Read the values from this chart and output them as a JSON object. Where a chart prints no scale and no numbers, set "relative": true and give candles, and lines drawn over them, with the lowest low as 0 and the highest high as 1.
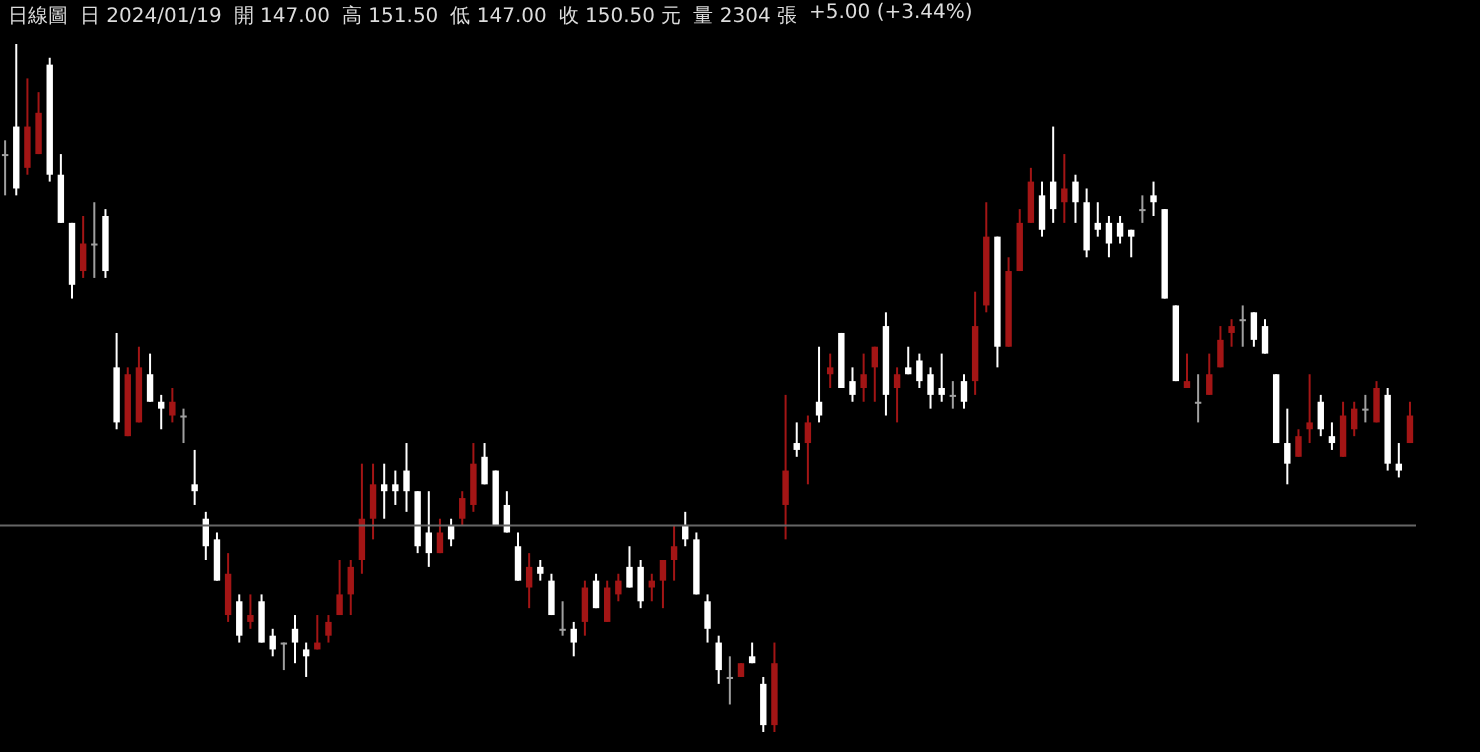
{
  "chart_data": {
    "type": "candlestick",
    "relative": true,
    "annotations": [
      "日線圖",
      "日 2024/01/19",
      "開 147.00",
      "高 151.50",
      "低 147.00",
      "收 150.50 元",
      "量 2304 張",
      "+5.00 (+3.44%)"
    ],
    "categories": [
      null,
      null,
      null,
      null,
      null,
      null,
      null,
      null,
      null,
      null,
      null,
      null,
      null,
      null,
      null,
      null,
      null,
      null,
      null,
      null,
      null,
      null,
      null,
      null,
      null,
      null,
      null,
      null,
      null,
      null,
      null,
      null,
      null,
      null,
      null,
      null,
      null,
      null,
      null,
      null,
      null,
      null,
      null,
      null,
      null,
      null,
      null,
      null,
      null,
      null,
      null,
      null,
      null,
      null,
      null,
      null,
      null,
      null,
      null,
      null,
      null,
      null,
      null,
      null,
      null,
      null,
      null,
      null,
      null,
      null,
      null,
      null,
      null,
      null,
      null,
      null,
      null,
      null,
      null,
      null,
      null,
      null,
      null,
      null,
      null,
      null,
      null,
      null,
      null,
      null,
      null,
      null,
      null,
      null,
      null,
      null,
      null,
      null,
      null,
      null,
      null,
      null,
      null,
      null,
      null,
      null,
      null,
      null,
      null,
      null,
      null,
      null,
      null,
      null,
      null,
      null,
      null,
      null,
      null,
      null,
      null,
      null,
      null,
      null,
      null,
      null,
      null
    ],
    "ohlc": [
      [
        0.84,
        0.86,
        0.78,
        0.84
      ],
      [
        0.88,
        1.0,
        0.78,
        0.79
      ],
      [
        0.82,
        0.95,
        0.81,
        0.88
      ],
      [
        0.84,
        0.93,
        0.84,
        0.9
      ],
      [
        0.97,
        0.98,
        0.8,
        0.81
      ],
      [
        0.81,
        0.84,
        0.74,
        0.74
      ],
      [
        0.74,
        0.74,
        0.63,
        0.65
      ],
      [
        0.67,
        0.75,
        0.66,
        0.71
      ],
      [
        0.71,
        0.77,
        0.66,
        0.71
      ],
      [
        0.75,
        0.76,
        0.66,
        0.67
      ],
      [
        0.53,
        0.58,
        0.44,
        0.45
      ],
      [
        0.43,
        0.53,
        0.43,
        0.52
      ],
      [
        0.45,
        0.56,
        0.45,
        0.53
      ],
      [
        0.52,
        0.55,
        0.48,
        0.48
      ],
      [
        0.48,
        0.49,
        0.44,
        0.47
      ],
      [
        0.46,
        0.5,
        0.45,
        0.48
      ],
      [
        0.46,
        0.47,
        0.42,
        0.46
      ],
      [
        0.36,
        0.41,
        0.33,
        0.35
      ],
      [
        0.31,
        0.32,
        0.25,
        0.27
      ],
      [
        0.28,
        0.29,
        0.22,
        0.22
      ],
      [
        0.17,
        0.26,
        0.16,
        0.23
      ],
      [
        0.19,
        0.2,
        0.13,
        0.14
      ],
      [
        0.16,
        0.2,
        0.15,
        0.17
      ],
      [
        0.19,
        0.2,
        0.13,
        0.13
      ],
      [
        0.14,
        0.15,
        0.11,
        0.12
      ],
      [
        0.13,
        0.13,
        0.09,
        0.13
      ],
      [
        0.15,
        0.17,
        0.1,
        0.13
      ],
      [
        0.12,
        0.13,
        0.08,
        0.11
      ],
      [
        0.12,
        0.17,
        0.12,
        0.13
      ],
      [
        0.14,
        0.17,
        0.13,
        0.16
      ],
      [
        0.17,
        0.25,
        0.17,
        0.2
      ],
      [
        0.2,
        0.25,
        0.17,
        0.24
      ],
      [
        0.25,
        0.39,
        0.23,
        0.31
      ],
      [
        0.31,
        0.39,
        0.28,
        0.36
      ],
      [
        0.36,
        0.39,
        0.31,
        0.35
      ],
      [
        0.36,
        0.38,
        0.33,
        0.35
      ],
      [
        0.38,
        0.42,
        0.32,
        0.35
      ],
      [
        0.35,
        0.35,
        0.26,
        0.27
      ],
      [
        0.29,
        0.35,
        0.24,
        0.26
      ],
      [
        0.26,
        0.31,
        0.26,
        0.29
      ],
      [
        0.3,
        0.31,
        0.27,
        0.28
      ],
      [
        0.31,
        0.35,
        0.3,
        0.34
      ],
      [
        0.33,
        0.42,
        0.32,
        0.39
      ],
      [
        0.4,
        0.42,
        0.36,
        0.36
      ],
      [
        0.38,
        0.38,
        0.3,
        0.3
      ],
      [
        0.33,
        0.35,
        0.29,
        0.29
      ],
      [
        0.27,
        0.29,
        0.22,
        0.22
      ],
      [
        0.21,
        0.26,
        0.18,
        0.24
      ],
      [
        0.24,
        0.25,
        0.22,
        0.23
      ],
      [
        0.22,
        0.23,
        0.17,
        0.17
      ],
      [
        0.15,
        0.19,
        0.14,
        0.15
      ],
      [
        0.15,
        0.16,
        0.11,
        0.13
      ],
      [
        0.16,
        0.22,
        0.14,
        0.21
      ],
      [
        0.22,
        0.23,
        0.18,
        0.18
      ],
      [
        0.16,
        0.22,
        0.16,
        0.21
      ],
      [
        0.2,
        0.23,
        0.19,
        0.22
      ],
      [
        0.24,
        0.27,
        0.21,
        0.21
      ],
      [
        0.24,
        0.25,
        0.18,
        0.19
      ],
      [
        0.21,
        0.23,
        0.19,
        0.22
      ],
      [
        0.22,
        0.25,
        0.18,
        0.25
      ],
      [
        0.25,
        0.3,
        0.22,
        0.27
      ],
      [
        0.3,
        0.32,
        0.27,
        0.28
      ],
      [
        0.28,
        0.29,
        0.2,
        0.2
      ],
      [
        0.19,
        0.2,
        0.13,
        0.15
      ],
      [
        0.13,
        0.14,
        0.07,
        0.09
      ],
      [
        0.08,
        0.11,
        0.04,
        0.08
      ],
      [
        0.08,
        0.1,
        0.08,
        0.1
      ],
      [
        0.11,
        0.13,
        0.1,
        0.1
      ],
      [
        0.07,
        0.08,
        0.0,
        0.01
      ],
      [
        0.01,
        0.13,
        0.0,
        0.1
      ],
      [
        0.33,
        0.49,
        0.28,
        0.38
      ],
      [
        0.42,
        0.45,
        0.4,
        0.41
      ],
      [
        0.42,
        0.46,
        0.36,
        0.45
      ],
      [
        0.48,
        0.56,
        0.45,
        0.46
      ],
      [
        0.52,
        0.55,
        0.5,
        0.53
      ],
      [
        0.58,
        0.58,
        0.5,
        0.5
      ],
      [
        0.51,
        0.53,
        0.48,
        0.49
      ],
      [
        0.5,
        0.55,
        0.48,
        0.52
      ],
      [
        0.53,
        0.56,
        0.48,
        0.56
      ],
      [
        0.59,
        0.61,
        0.46,
        0.49
      ],
      [
        0.5,
        0.53,
        0.45,
        0.52
      ],
      [
        0.53,
        0.56,
        0.52,
        0.52
      ],
      [
        0.54,
        0.55,
        0.5,
        0.51
      ],
      [
        0.52,
        0.53,
        0.47,
        0.49
      ],
      [
        0.5,
        0.55,
        0.48,
        0.49
      ],
      [
        0.49,
        0.51,
        0.47,
        0.49
      ],
      [
        0.51,
        0.52,
        0.47,
        0.48
      ],
      [
        0.51,
        0.64,
        0.49,
        0.59
      ],
      [
        0.62,
        0.77,
        0.61,
        0.72
      ],
      [
        0.72,
        0.72,
        0.53,
        0.56
      ],
      [
        0.56,
        0.69,
        0.56,
        0.67
      ],
      [
        0.67,
        0.76,
        0.67,
        0.74
      ],
      [
        0.74,
        0.82,
        0.74,
        0.8
      ],
      [
        0.78,
        0.8,
        0.72,
        0.73
      ],
      [
        0.8,
        0.88,
        0.74,
        0.76
      ],
      [
        0.77,
        0.84,
        0.74,
        0.79
      ],
      [
        0.8,
        0.81,
        0.74,
        0.77
      ],
      [
        0.77,
        0.79,
        0.69,
        0.7
      ],
      [
        0.74,
        0.77,
        0.72,
        0.73
      ],
      [
        0.74,
        0.75,
        0.69,
        0.71
      ],
      [
        0.74,
        0.75,
        0.71,
        0.72
      ],
      [
        0.73,
        0.73,
        0.69,
        0.72
      ],
      [
        0.76,
        0.78,
        0.74,
        0.76
      ],
      [
        0.78,
        0.8,
        0.75,
        0.77
      ],
      [
        0.76,
        0.76,
        0.63,
        0.63
      ],
      [
        0.62,
        0.62,
        0.51,
        0.51
      ],
      [
        0.5,
        0.55,
        0.5,
        0.51
      ],
      [
        0.48,
        0.52,
        0.45,
        0.48
      ],
      [
        0.49,
        0.55,
        0.49,
        0.52
      ],
      [
        0.53,
        0.59,
        0.53,
        0.57
      ],
      [
        0.58,
        0.6,
        0.56,
        0.59
      ],
      [
        0.6,
        0.62,
        0.56,
        0.6
      ],
      [
        0.61,
        0.61,
        0.56,
        0.57
      ],
      [
        0.59,
        0.6,
        0.55,
        0.55
      ],
      [
        0.52,
        0.52,
        0.42,
        0.42
      ],
      [
        0.42,
        0.47,
        0.36,
        0.39
      ],
      [
        0.4,
        0.44,
        0.4,
        0.43
      ],
      [
        0.44,
        0.52,
        0.42,
        0.45
      ],
      [
        0.48,
        0.49,
        0.43,
        0.44
      ],
      [
        0.43,
        0.45,
        0.41,
        0.42
      ],
      [
        0.4,
        0.48,
        0.4,
        0.46
      ],
      [
        0.44,
        0.48,
        0.43,
        0.47
      ],
      [
        0.47,
        0.49,
        0.45,
        0.47
      ],
      [
        0.45,
        0.51,
        0.45,
        0.5
      ],
      [
        0.49,
        0.5,
        0.38,
        0.39
      ],
      [
        0.39,
        0.42,
        0.37,
        0.38
      ],
      [
        0.42,
        0.48,
        0.42,
        0.46
      ]
    ],
    "colors": [
      "#a0a0a0",
      "#ffffff",
      "#a31515",
      "#a31515",
      "#ffffff",
      "#ffffff",
      "#ffffff",
      "#a31515",
      "#a0a0a0",
      "#ffffff",
      "#ffffff",
      "#a31515",
      "#a31515",
      "#ffffff",
      "#ffffff",
      "#a31515",
      "#a0a0a0",
      "#ffffff",
      "#ffffff",
      "#ffffff",
      "#a31515",
      "#ffffff",
      "#a31515",
      "#ffffff",
      "#ffffff",
      "#a0a0a0",
      "#ffffff",
      "#ffffff",
      "#a31515",
      "#a31515",
      "#a31515",
      "#a31515",
      "#a31515",
      "#a31515",
      "#ffffff",
      "#ffffff",
      "#ffffff",
      "#ffffff",
      "#ffffff",
      "#a31515",
      "#ffffff",
      "#a31515",
      "#a31515",
      "#ffffff",
      "#ffffff",
      "#ffffff",
      "#ffffff",
      "#a31515",
      "#ffffff",
      "#ffffff",
      "#a0a0a0",
      "#ffffff",
      "#a31515",
      "#ffffff",
      "#a31515",
      "#a31515",
      "#ffffff",
      "#ffffff",
      "#a31515",
      "#a31515",
      "#a31515",
      "#ffffff",
      "#ffffff",
      "#ffffff",
      "#ffffff",
      "#a0a0a0",
      "#a31515",
      "#ffffff",
      "#ffffff",
      "#a31515",
      "#a31515",
      "#ffffff",
      "#a31515",
      "#ffffff",
      "#a31515",
      "#ffffff",
      "#ffffff",
      "#a31515",
      "#a31515",
      "#ffffff",
      "#a31515",
      "#ffffff",
      "#ffffff",
      "#ffffff",
      "#ffffff",
      "#a0a0a0",
      "#ffffff",
      "#a31515",
      "#a31515",
      "#ffffff",
      "#a31515",
      "#a31515",
      "#a31515",
      "#ffffff",
      "#ffffff",
      "#a31515",
      "#ffffff",
      "#ffffff",
      "#ffffff",
      "#ffffff",
      "#ffffff",
      "#ffffff",
      "#a0a0a0",
      "#ffffff",
      "#ffffff",
      "#ffffff",
      "#a31515",
      "#a0a0a0",
      "#a31515",
      "#a31515",
      "#a31515",
      "#a0a0a0",
      "#ffffff",
      "#ffffff",
      "#ffffff",
      "#ffffff",
      "#a31515",
      "#a31515",
      "#ffffff",
      "#ffffff",
      "#a31515",
      "#a31515",
      "#a0a0a0",
      "#a31515",
      "#ffffff",
      "#ffffff",
      "#a31515"
    ],
    "ref_lines": [
      {
        "axis": "y",
        "value": 0.3,
        "color": "#666666"
      }
    ]
  }
}
